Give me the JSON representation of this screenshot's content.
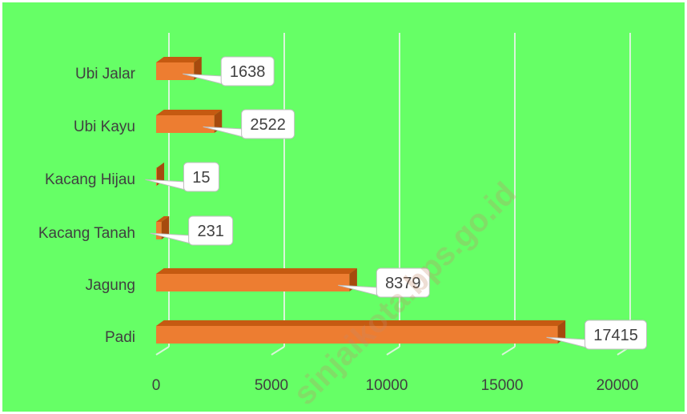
{
  "chart_data": {
    "type": "bar",
    "orientation": "horizontal",
    "style": "3d",
    "categories": [
      "Ubi Jalar",
      "Ubi Kayu",
      "Kacang Hijau",
      "Kacang Tanah",
      "Jagung",
      "Padi"
    ],
    "values": [
      1638,
      2522,
      15,
      231,
      8379,
      17415
    ],
    "data_labels": [
      "1638",
      "2522",
      "15",
      "231",
      "8379",
      "17415"
    ],
    "xlim": [
      0,
      20000
    ],
    "x_ticks": [
      0,
      5000,
      10000,
      15000,
      20000
    ],
    "x_tick_labels": [
      "0",
      "5000",
      "10000",
      "15000",
      "20000"
    ],
    "grid": true,
    "legend": "none",
    "colors": {
      "background": "#66ff66",
      "bar_front": "#ed7d31",
      "bar_top": "#c55a11",
      "bar_side": "#a64a0e",
      "gridline": "#d9f5d9"
    }
  },
  "watermark": "sinjaikota.bps.go.id"
}
